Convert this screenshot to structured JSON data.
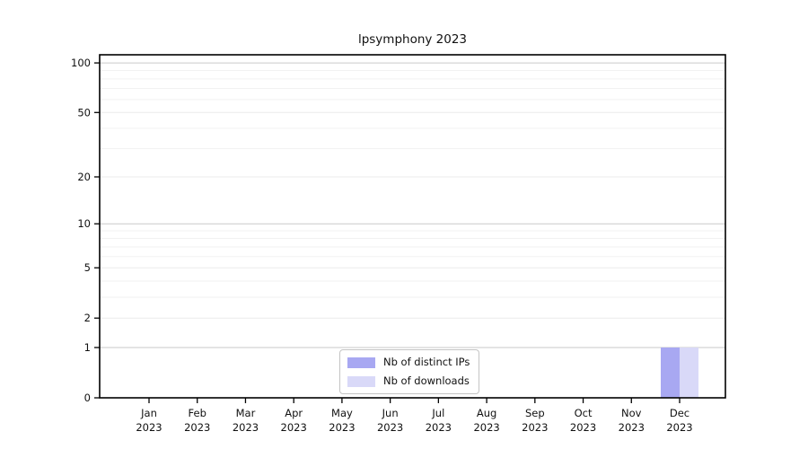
{
  "chart_data": {
    "type": "bar",
    "title": "lpsymphony 2023",
    "categories": [
      {
        "month": "Jan",
        "year": "2023"
      },
      {
        "month": "Feb",
        "year": "2023"
      },
      {
        "month": "Mar",
        "year": "2023"
      },
      {
        "month": "Apr",
        "year": "2023"
      },
      {
        "month": "May",
        "year": "2023"
      },
      {
        "month": "Jun",
        "year": "2023"
      },
      {
        "month": "Jul",
        "year": "2023"
      },
      {
        "month": "Aug",
        "year": "2023"
      },
      {
        "month": "Sep",
        "year": "2023"
      },
      {
        "month": "Oct",
        "year": "2023"
      },
      {
        "month": "Nov",
        "year": "2023"
      },
      {
        "month": "Dec",
        "year": "2023"
      }
    ],
    "series": [
      {
        "name": "Nb of distinct IPs",
        "color": "#a8a8f2",
        "values": [
          0,
          0,
          0,
          0,
          0,
          0,
          0,
          0,
          0,
          0,
          0,
          1
        ]
      },
      {
        "name": "Nb of downloads",
        "color": "#d9d9f8",
        "values": [
          0,
          0,
          0,
          0,
          0,
          0,
          0,
          0,
          0,
          0,
          0,
          1
        ]
      }
    ],
    "y_axis": {
      "scale": "log1p",
      "tick_labels": [
        "0",
        "1",
        "2",
        "5",
        "10",
        "20",
        "50",
        "100"
      ],
      "ticks": [
        0,
        1,
        2,
        5,
        10,
        20,
        50,
        100
      ],
      "minor_gridlines": [
        3,
        4,
        6,
        7,
        8,
        9,
        30,
        40,
        60,
        70,
        80,
        90
      ],
      "decade_gridlines": [
        1,
        10,
        100
      ],
      "max": 112
    },
    "legend_position": "lower center",
    "grid": true,
    "colors": {
      "frame": "#000000",
      "decade_grid": "#c9c9c9",
      "labeled_grid": "#ebebeb",
      "minor_grid": "#f2f2f2",
      "text": "#111111",
      "background": "#ffffff"
    }
  }
}
